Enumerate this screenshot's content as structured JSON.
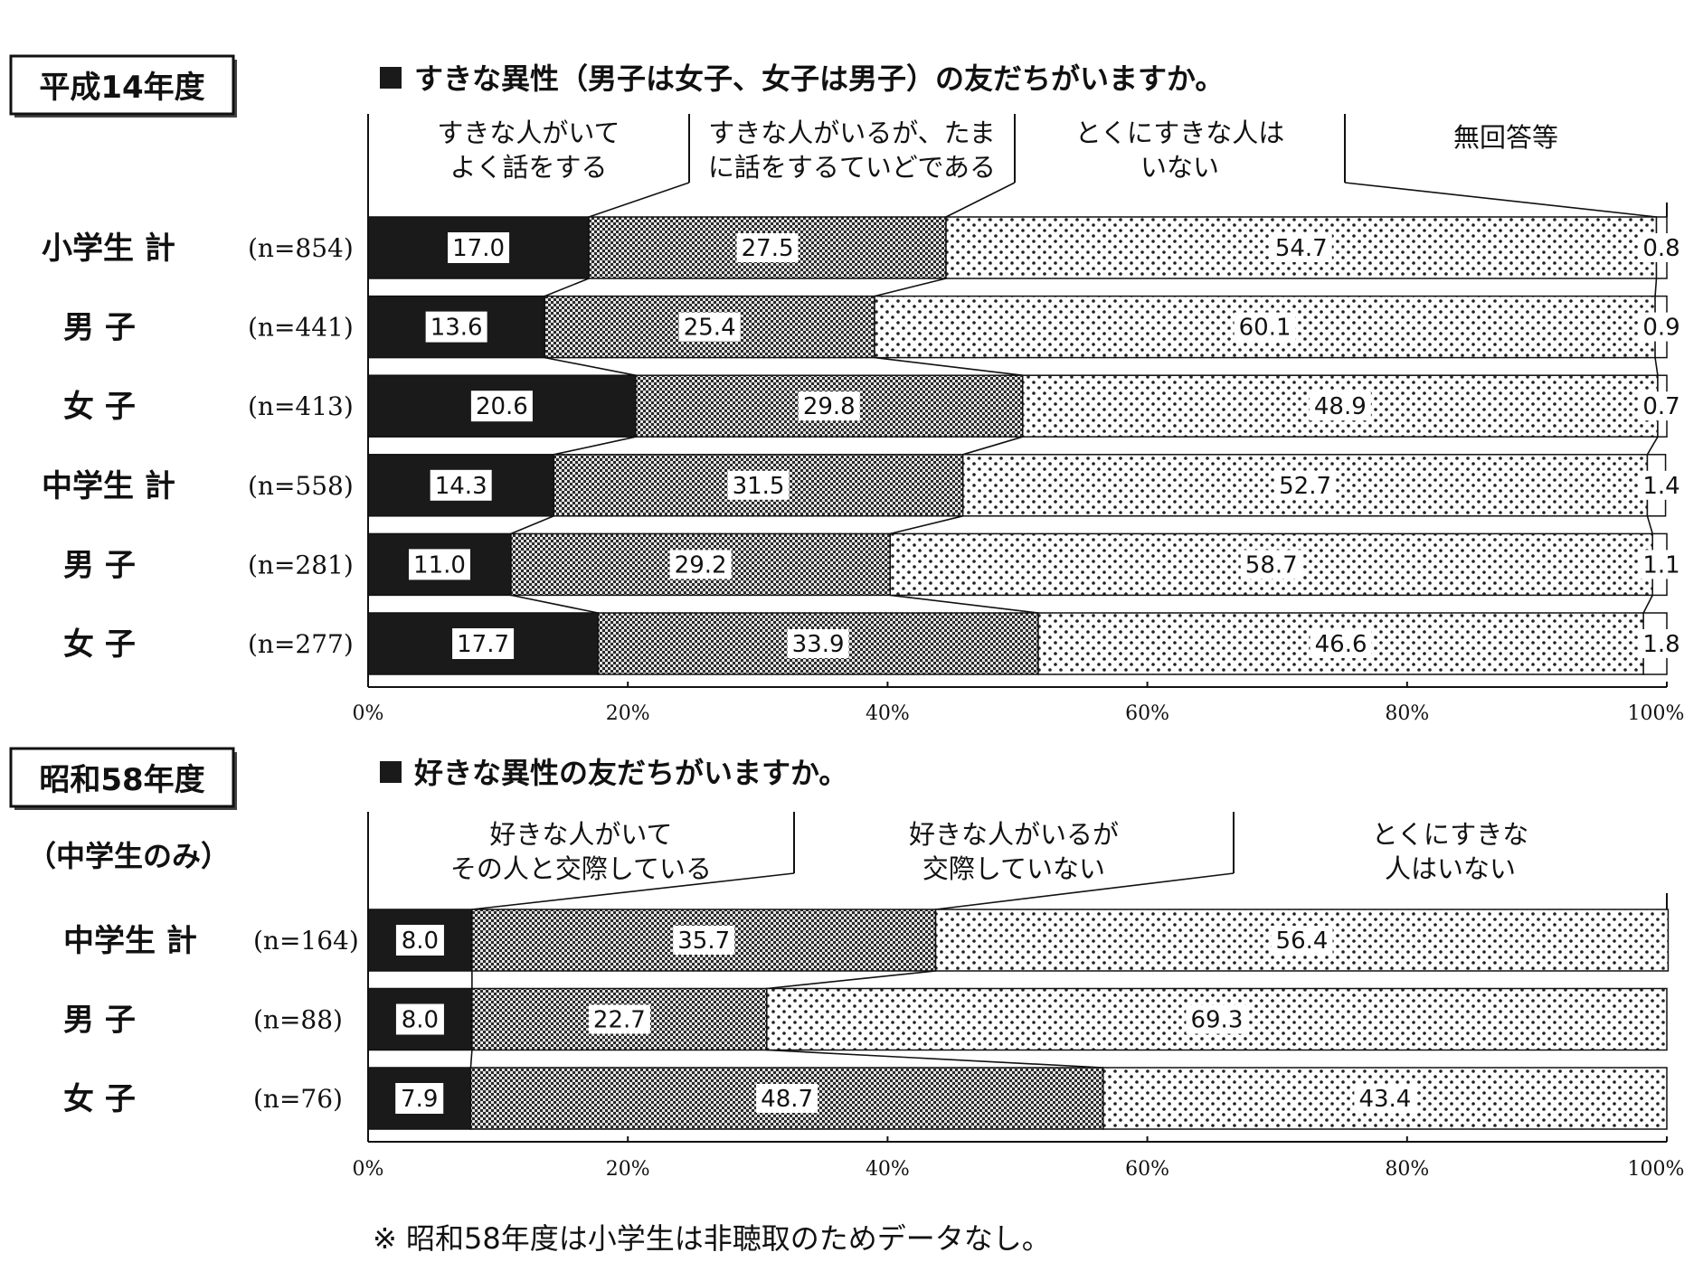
{
  "chart_data": [
    {
      "type": "bar",
      "orientation": "horizontal",
      "stacked": true,
      "period_label": "平成14年度",
      "title": "すきな異性（男子は女子、女子は男子）の友だちがいますか。",
      "categories": [
        "小学生 計",
        "男 子",
        "女 子",
        "中学生 計",
        "男 子",
        "女 子"
      ],
      "sample_sizes": [
        "(n=854)",
        "(n=441)",
        "(n=413)",
        "(n=558)",
        "(n=281)",
        "(n=277)"
      ],
      "series": [
        {
          "name": "すきな人がいて\nよく話をする",
          "values": [
            17.0,
            13.6,
            20.6,
            14.3,
            11.0,
            17.7
          ]
        },
        {
          "name": "すきな人がいるが、たま\nに話をするていどである",
          "values": [
            27.5,
            25.4,
            29.8,
            31.5,
            29.2,
            33.9
          ]
        },
        {
          "name": "とくにすきな人は\nいない",
          "values": [
            54.7,
            60.1,
            48.9,
            52.7,
            58.7,
            46.6
          ]
        },
        {
          "name": "無回答等",
          "values": [
            0.8,
            0.9,
            0.7,
            1.4,
            1.1,
            1.8
          ]
        }
      ],
      "xlim": [
        0,
        100
      ],
      "xticks": [
        "0%",
        "20%",
        "40%",
        "60%",
        "80%",
        "100%"
      ]
    },
    {
      "type": "bar",
      "orientation": "horizontal",
      "stacked": true,
      "period_label": "昭和58年度",
      "subtitle": "（中学生のみ）",
      "title": "好きな異性の友だちがいますか。",
      "categories": [
        "中学生 計",
        "男 子",
        "女 子"
      ],
      "sample_sizes": [
        "(n=164)",
        "(n=88)",
        "(n=76)"
      ],
      "series": [
        {
          "name": "好きな人がいて\nその人と交際している",
          "values": [
            8.0,
            8.0,
            7.9
          ]
        },
        {
          "name": "好きな人がいるが\n交際していない",
          "values": [
            35.7,
            22.7,
            48.7
          ]
        },
        {
          "name": "とくにすきな\n人はいない",
          "values": [
            56.4,
            69.3,
            43.4
          ]
        }
      ],
      "xlim": [
        0,
        100
      ],
      "xticks": [
        "0%",
        "20%",
        "40%",
        "60%",
        "80%",
        "100%"
      ]
    }
  ],
  "footnote": "※ 昭和58年度は小学生は非聴取のためデータなし。",
  "colors": {
    "black": "#1a1a1a",
    "ink": "#111111",
    "background": "#ffffff"
  }
}
